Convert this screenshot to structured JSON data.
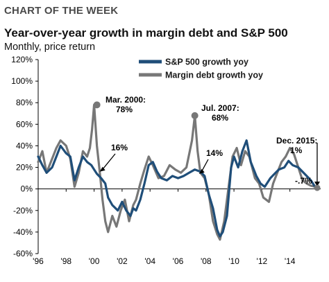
{
  "header_label": "CHART OF THE WEEK",
  "chart_data": {
    "type": "line",
    "title": "Year-over-year growth in margin debt and S&P 500",
    "subtitle": "Monthly, price return",
    "xlabel": "",
    "ylabel": "",
    "ylim": [
      -60,
      120
    ],
    "xlim": [
      1996,
      2016.2
    ],
    "grid": false,
    "legend_position": "top",
    "y_tick_labels": [
      "120%",
      "100%",
      "80%",
      "60%",
      "40%",
      "20%",
      "0%",
      "-20%",
      "-40%",
      "-60%"
    ],
    "x_tick_labels": [
      "'96",
      "'98",
      "'00",
      "'02",
      "'04",
      "'06",
      "'08",
      "'10",
      "'12",
      "'14"
    ],
    "series": [
      {
        "name": "S&P 500 growth yoy",
        "color": "#1f4e79",
        "x": [
          1996.0,
          1996.3,
          1996.6,
          1997.0,
          1997.3,
          1997.6,
          1998.0,
          1998.3,
          1998.6,
          1998.9,
          1999.2,
          1999.5,
          1999.8,
          2000.0,
          2000.2,
          2000.5,
          2000.8,
          2001.0,
          2001.3,
          2001.7,
          2002.0,
          2002.3,
          2002.6,
          2002.8,
          2003.0,
          2003.3,
          2003.6,
          2003.9,
          2004.2,
          2004.5,
          2004.8,
          2005.2,
          2005.6,
          2006.0,
          2006.4,
          2006.8,
          2007.2,
          2007.6,
          2007.9,
          2008.2,
          2008.5,
          2008.8,
          2009.0,
          2009.2,
          2009.5,
          2009.8,
          2010.0,
          2010.3,
          2010.6,
          2010.9,
          2011.2,
          2011.6,
          2011.9,
          2012.2,
          2012.6,
          2012.9,
          2013.2,
          2013.6,
          2013.9,
          2014.2,
          2014.6,
          2014.9,
          2015.2,
          2015.5,
          2015.8,
          2015.95
        ],
        "values": [
          30,
          22,
          15,
          20,
          30,
          40,
          33,
          30,
          8,
          20,
          30,
          25,
          22,
          18,
          14,
          10,
          5,
          -8,
          -15,
          -20,
          -12,
          -20,
          -25,
          -18,
          -20,
          -10,
          5,
          22,
          25,
          16,
          10,
          8,
          12,
          10,
          12,
          15,
          18,
          16,
          12,
          -5,
          -18,
          -38,
          -44,
          -40,
          -25,
          20,
          30,
          20,
          35,
          45,
          25,
          12,
          5,
          2,
          10,
          14,
          18,
          20,
          26,
          22,
          20,
          16,
          12,
          8,
          2,
          -0.7
        ]
      },
      {
        "name": "Margin debt growth yoy",
        "color": "#777777",
        "x": [
          1996.0,
          1996.3,
          1996.6,
          1997.0,
          1997.3,
          1997.6,
          1998.0,
          1998.3,
          1998.6,
          1998.9,
          1999.2,
          1999.5,
          1999.7,
          1999.85,
          2000.0,
          2000.2,
          2000.4,
          2000.6,
          2000.8,
          2001.0,
          2001.3,
          2001.6,
          2001.9,
          2002.2,
          2002.5,
          2002.8,
          2003.0,
          2003.3,
          2003.6,
          2003.9,
          2004.2,
          2004.6,
          2005.0,
          2005.4,
          2005.8,
          2006.2,
          2006.6,
          2007.0,
          2007.2,
          2007.4,
          2007.6,
          2007.9,
          2008.2,
          2008.5,
          2008.8,
          2009.0,
          2009.3,
          2009.6,
          2009.9,
          2010.2,
          2010.5,
          2010.8,
          2011.1,
          2011.5,
          2011.8,
          2012.1,
          2012.5,
          2012.8,
          2013.1,
          2013.4,
          2013.7,
          2014.0,
          2014.3,
          2014.6,
          2014.9,
          2015.2,
          2015.5,
          2015.8,
          2015.95
        ],
        "values": [
          25,
          35,
          15,
          28,
          38,
          45,
          40,
          28,
          2,
          15,
          35,
          30,
          38,
          55,
          78,
          40,
          16,
          -10,
          -30,
          -40,
          -25,
          -35,
          -20,
          -10,
          -30,
          -15,
          -10,
          5,
          18,
          30,
          22,
          10,
          12,
          22,
          18,
          15,
          20,
          45,
          68,
          35,
          15,
          10,
          -5,
          -30,
          -42,
          -47,
          -30,
          0,
          30,
          38,
          22,
          35,
          30,
          10,
          5,
          -8,
          -12,
          5,
          15,
          25,
          30,
          38,
          32,
          20,
          8,
          5,
          3,
          2,
          1
        ]
      }
    ],
    "annotations": [
      {
        "label": "Mar. 2000:",
        "value_label": "78%",
        "x": 2000.2,
        "y": 78
      },
      {
        "label": "16%",
        "x": 2000.4,
        "y": 16
      },
      {
        "label": "Jul. 2007:",
        "value_label": "68%",
        "x": 2007.2,
        "y": 68
      },
      {
        "label": "14%",
        "x": 2007.5,
        "y": 14
      },
      {
        "label": "Dec. 2015:",
        "value_label": "1%",
        "x": 2015.95,
        "y": 1
      },
      {
        "label": "-.7%",
        "x": 2015.95,
        "y": -0.7
      }
    ]
  }
}
